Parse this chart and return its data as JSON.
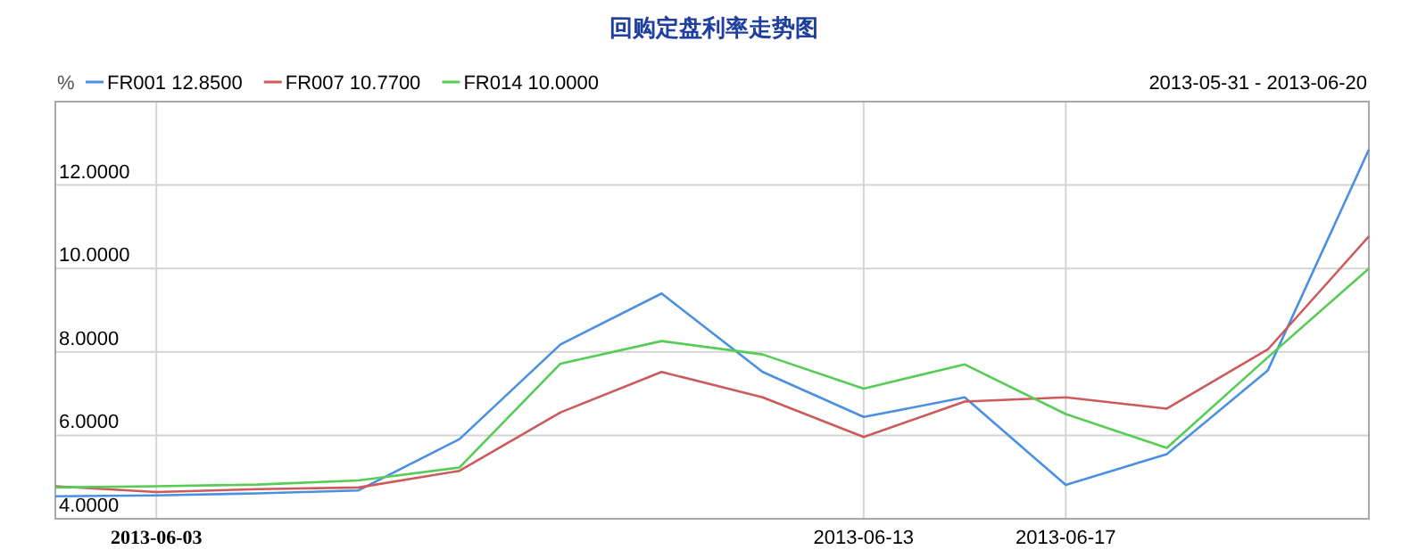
{
  "chart_data": {
    "type": "line",
    "title": "回购定盘利率走势图",
    "subtitle": "2013-05-31 - 2013-06-20",
    "ylabel": "%",
    "categories": [
      null,
      "2013-06-03",
      null,
      null,
      null,
      null,
      null,
      null,
      "2013-06-13",
      null,
      "2013-06-17",
      null,
      null,
      null
    ],
    "series": [
      {
        "name": "FR001 12.8500",
        "color": "#4a90e2",
        "values": [
          4.54,
          4.56,
          4.61,
          4.68,
          5.91,
          8.18,
          9.4,
          7.52,
          6.44,
          6.91,
          4.81,
          5.55,
          7.56,
          12.85
        ]
      },
      {
        "name": "FR007 10.7700",
        "color": "#cc5a5a",
        "values": [
          4.78,
          4.64,
          4.71,
          4.75,
          5.15,
          6.55,
          7.52,
          6.91,
          5.96,
          6.81,
          6.91,
          6.64,
          8.06,
          10.77
        ]
      },
      {
        "name": "FR014 10.0000",
        "color": "#55cc55",
        "values": [
          4.75,
          4.78,
          4.82,
          4.92,
          5.23,
          7.72,
          8.26,
          7.94,
          7.12,
          7.7,
          6.51,
          5.7,
          7.87,
          10.0
        ]
      }
    ],
    "ylim": [
      4,
      14
    ],
    "yticks": [
      {
        "value": 4,
        "label": "4.0000"
      },
      {
        "value": 6,
        "label": "6.0000"
      },
      {
        "value": 8,
        "label": "8.0000"
      },
      {
        "value": 10,
        "label": "10.0000"
      },
      {
        "value": 12,
        "label": "12.0000"
      }
    ],
    "grid": true,
    "legend": "top left",
    "marker": "none",
    "line_style": "solid"
  }
}
